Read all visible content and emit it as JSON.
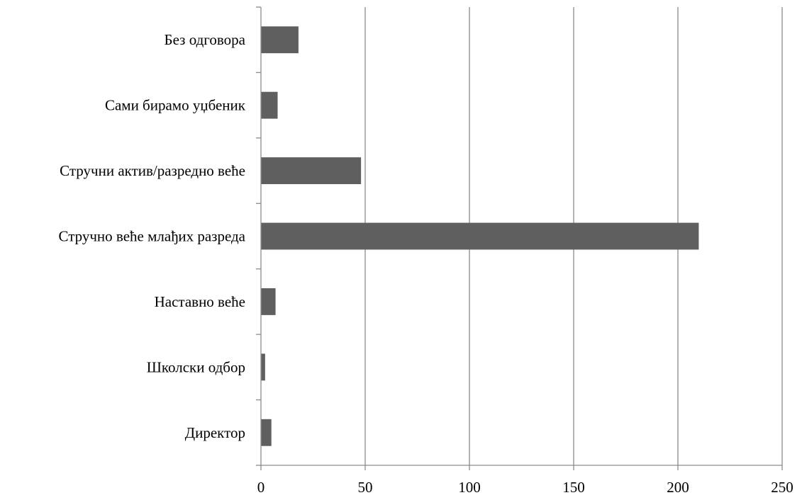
{
  "chart_data": {
    "type": "bar",
    "orientation": "horizontal",
    "categories": [
      "Директор",
      "Школски одбор",
      "Наставно веће",
      "Стручно веће млађих разреда",
      "Стручни актив/разредно веће",
      "Сами бирамо уџбеник",
      "Без одговора"
    ],
    "values": [
      5,
      2,
      7,
      210,
      48,
      8,
      18
    ],
    "xlim": [
      0,
      250
    ],
    "xticks": [
      0,
      50,
      100,
      150,
      200,
      250
    ],
    "grid": "vertical",
    "legend": "none",
    "title": "",
    "xlabel": "",
    "ylabel": "",
    "colors": {
      "bar": "#5f5f5f",
      "grid": "#8c8c8c",
      "axis": "#8c8c8c"
    }
  }
}
